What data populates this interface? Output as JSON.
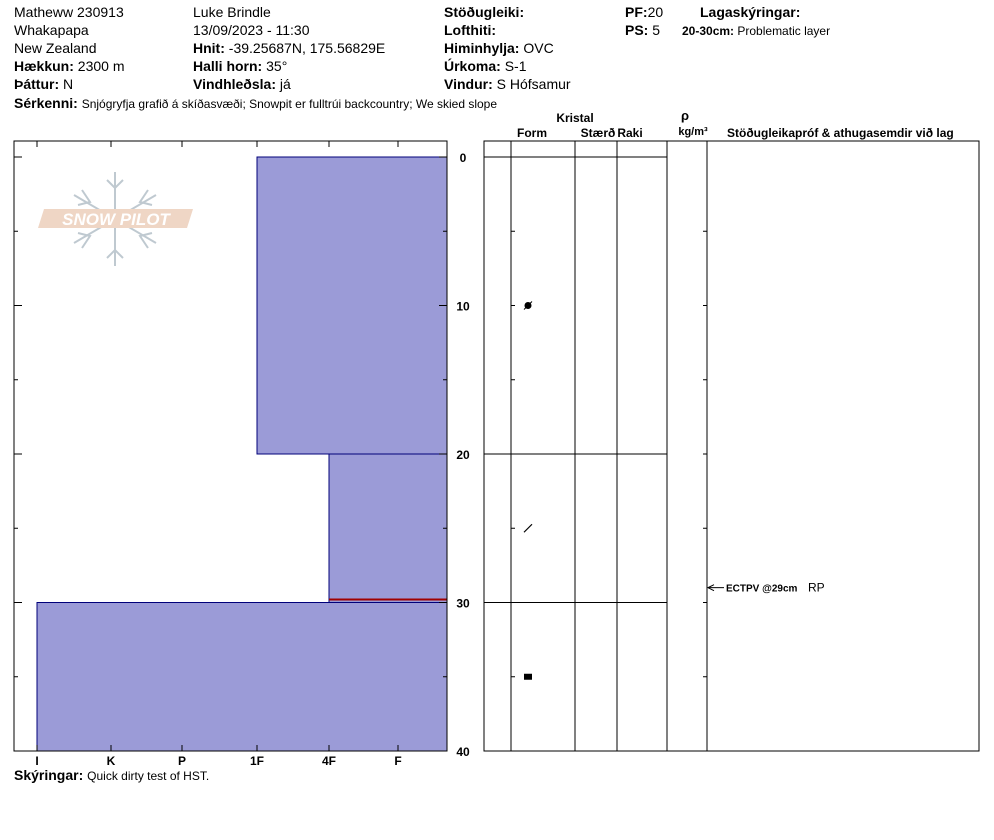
{
  "header": {
    "observer_id": "Matheww 230913",
    "observer_name": "Luke Brindle",
    "location": "Whakapapa",
    "datetime": "13/09/2023 - 11:30",
    "region": "New Zealand",
    "coords_label": "Hnit:",
    "coords": "-39.25687N, 175.56829E",
    "elev_label": "Hækkun:",
    "elev": "2300 m",
    "slope_label": "Halli horn:",
    "slope": "35°",
    "aspect_label": "Þáttur:",
    "aspect": "N",
    "wind_loading_label": "Vindhleðsla:",
    "wind_loading": "já",
    "stability_label": "Stöðugleiki:",
    "air_temp_label": "Lofthiti:",
    "sky_label": "Himinhylja:",
    "sky": "OVC",
    "precip_label": "Úrkoma:",
    "precip": "S-1",
    "wind_label": "Vindur:",
    "wind": "S Hófsamur",
    "pf_label": "PF:",
    "pf": "20",
    "ps_label": "PS:",
    "ps": "5",
    "layer_notes_label": "Lagaskýringar:",
    "layer_note_depth": "20-30cm:",
    "layer_note_text": "Problematic layer",
    "specifics_label": "Sérkenni:",
    "specifics": "Snjógryfja grafið á skíðasvæði; Snowpit er fulltrúi backcountry; We skied slope"
  },
  "logo": {
    "text": "SNOW PILOT"
  },
  "columns": {
    "crystal": "Kristal",
    "form": "Form",
    "size": "Stærð",
    "moisture": "Raki",
    "rho": "ρ",
    "density_unit": "kg/m³",
    "stability_notes": "Stöðugleikapróf & athugasemdir við lag"
  },
  "chart_data": {
    "type": "bar",
    "description_none": "",
    "xlabel": "",
    "ylabel": "",
    "hardness_categories": [
      "I",
      "K",
      "P",
      "1F",
      "4F",
      "F"
    ],
    "depth_ticks": [
      "0",
      "10",
      "20",
      "30",
      "40"
    ],
    "depth_range": [
      0,
      40
    ],
    "layers": [
      {
        "top": 0,
        "bottom": 20,
        "hardness": "1F",
        "grain_icon": "rounding-faceted"
      },
      {
        "top": 20,
        "bottom": 30,
        "hardness": "4F",
        "grain_icon": "decomposing-fragments"
      },
      {
        "top": 30,
        "bottom": 40,
        "hardness": "I",
        "grain_icon": "melt-freeze"
      }
    ],
    "weak_layer_depth": 29.8,
    "fill_color": "#9b9bd7",
    "weak_layer_color": "#a00000"
  },
  "stability_test": {
    "depth": 29,
    "label": "ECTPV @29cm",
    "result": "RP"
  },
  "footer": {
    "comments_label": "Skýringar:",
    "comments": "Quick dirty test of HST."
  }
}
